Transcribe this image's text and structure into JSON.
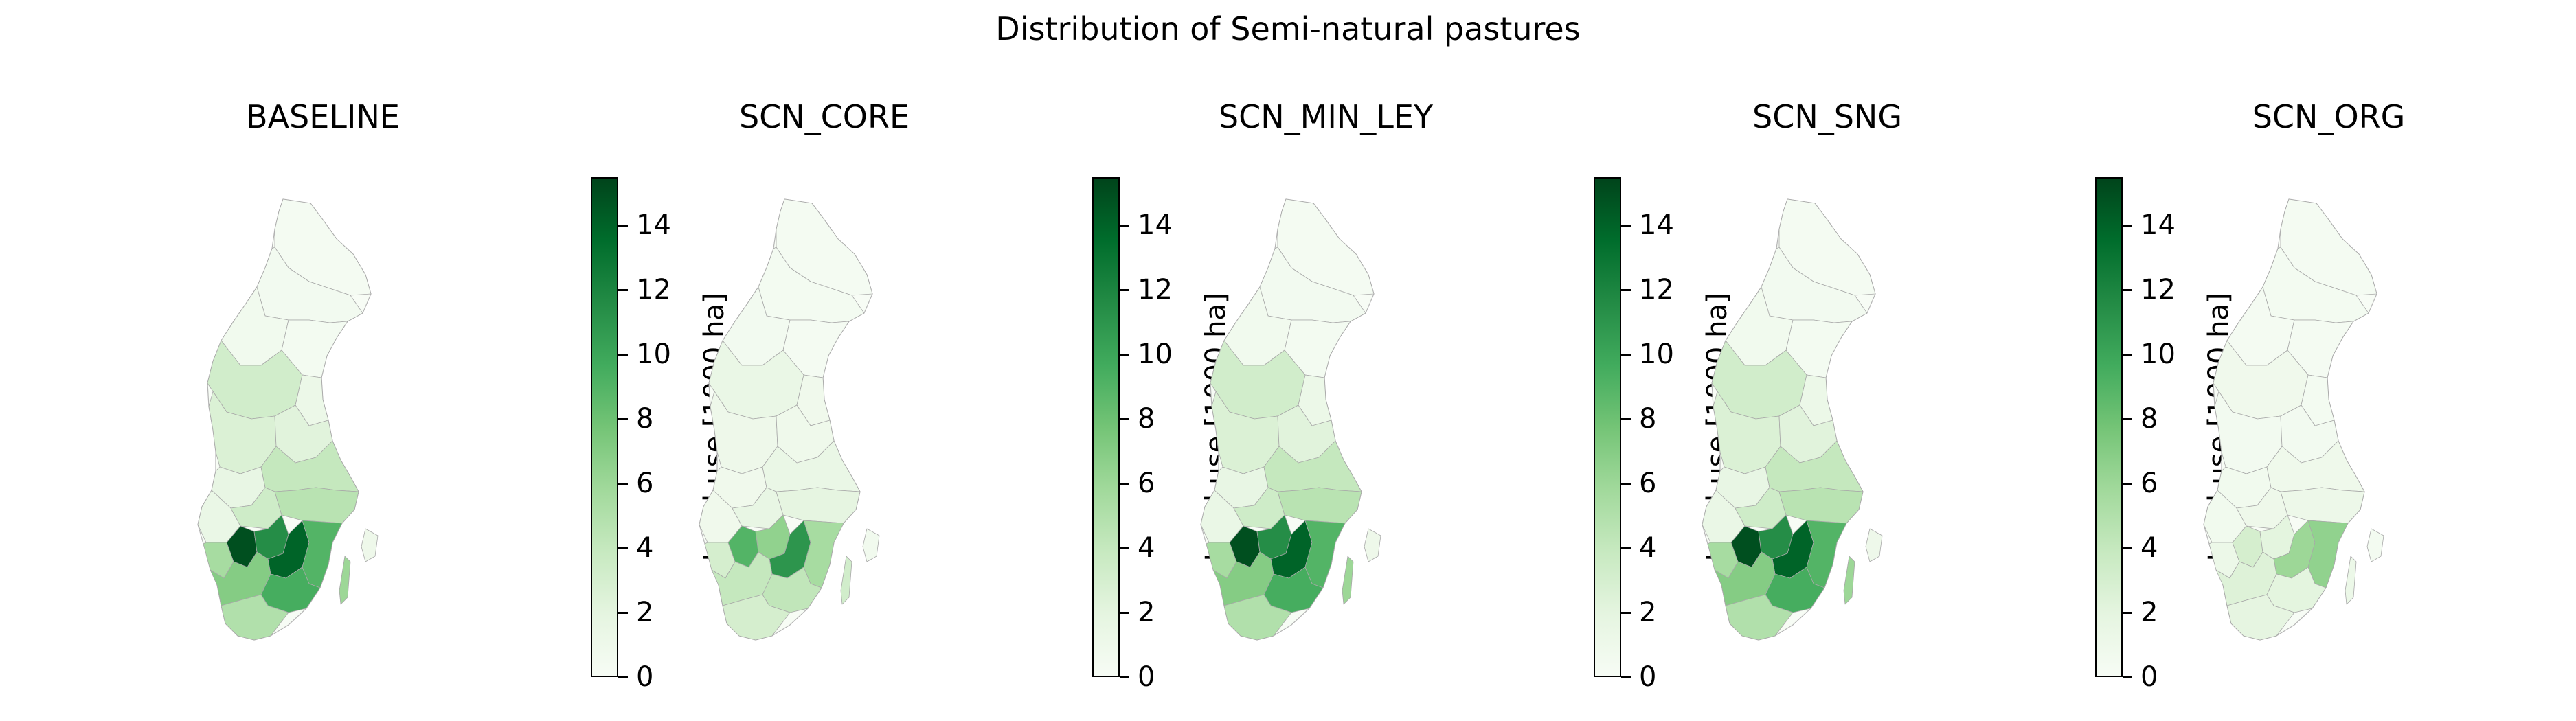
{
  "figure": {
    "title": "Distribution of Semi-natural pastures",
    "panels": [
      {
        "name": "BASELINE",
        "level": "high"
      },
      {
        "name": "SCN_CORE",
        "level": "mid"
      },
      {
        "name": "SCN_MIN_LEY",
        "level": "high"
      },
      {
        "name": "SCN_SNG",
        "level": "high"
      },
      {
        "name": "SCN_ORG",
        "level": "low"
      }
    ],
    "colorbar": {
      "label": "Land-use [1000 ha]",
      "ticks": [
        "0",
        "2",
        "4",
        "6",
        "8",
        "10",
        "12",
        "14"
      ],
      "range": [
        0,
        15.5
      ],
      "colormap": "Greens",
      "colors": [
        "#f7fcf5",
        "#e5f5e0",
        "#c7e9c0",
        "#a1d99b",
        "#74c476",
        "#41ab5d",
        "#238b45",
        "#006d2c",
        "#00441b"
      ]
    }
  }
}
